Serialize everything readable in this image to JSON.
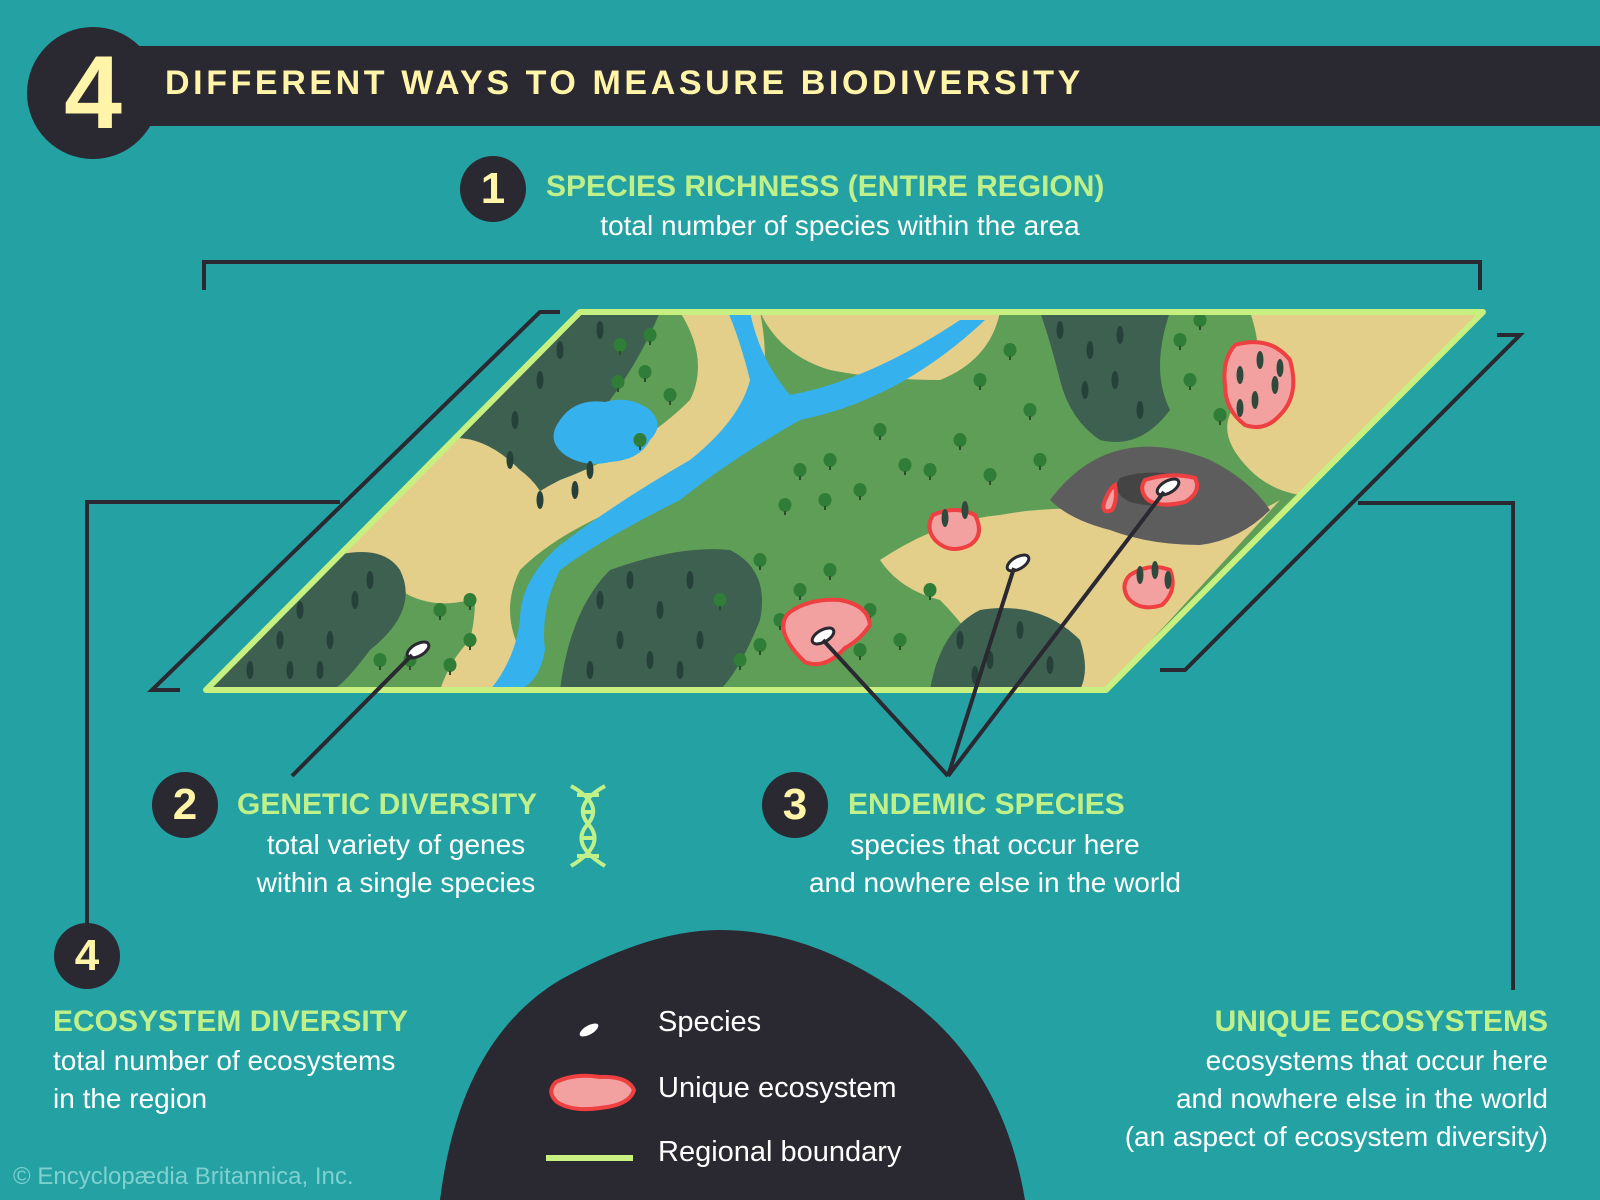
{
  "header": {
    "badge_number": "4",
    "title": "DIFFERENT WAYS TO MEASURE BIODIVERSITY"
  },
  "measures": [
    {
      "number": "1",
      "title": "SPECIES RICHNESS (ENTIRE REGION)",
      "description": [
        "total number of species within the area"
      ]
    },
    {
      "number": "2",
      "title": "GENETIC DIVERSITY",
      "description": [
        "total variety of genes",
        "within a single species"
      ]
    },
    {
      "number": "3",
      "title": "ENDEMIC SPECIES",
      "description": [
        "species that occur here",
        "and nowhere else in the world"
      ]
    },
    {
      "number": "4",
      "title": "ECOSYSTEM DIVERSITY",
      "description": [
        "total number of ecosystems",
        "in the region"
      ]
    }
  ],
  "unique_ecosystems": {
    "title": "UNIQUE ECOSYSTEMS",
    "description": [
      "ecosystems that occur here",
      "and nowhere else in the world",
      "(an aspect of ecosystem diversity)"
    ]
  },
  "legend": {
    "items": [
      {
        "label": "Species",
        "icon": "species-icon"
      },
      {
        "label": "Unique ecosystem",
        "icon": "unique-ecosystem-icon"
      },
      {
        "label": "Regional boundary",
        "icon": "regional-boundary-icon"
      }
    ]
  },
  "copyright": "© Encyclopædia Britannica, Inc.",
  "colors": {
    "background": "#23a1a3",
    "dark": "#2a2830",
    "heading_green": "#bff08a",
    "title_yellow": "#fff4a8",
    "boundary_green": "#c8f080",
    "water": "#35b1ee",
    "sand": "#e3cf8a",
    "forest_light": "#5f9e57",
    "forest_dark": "#3d6050",
    "unique_red": "#ee4040",
    "unique_pink": "#f3a0a0",
    "rock": "#5d5d5d"
  }
}
